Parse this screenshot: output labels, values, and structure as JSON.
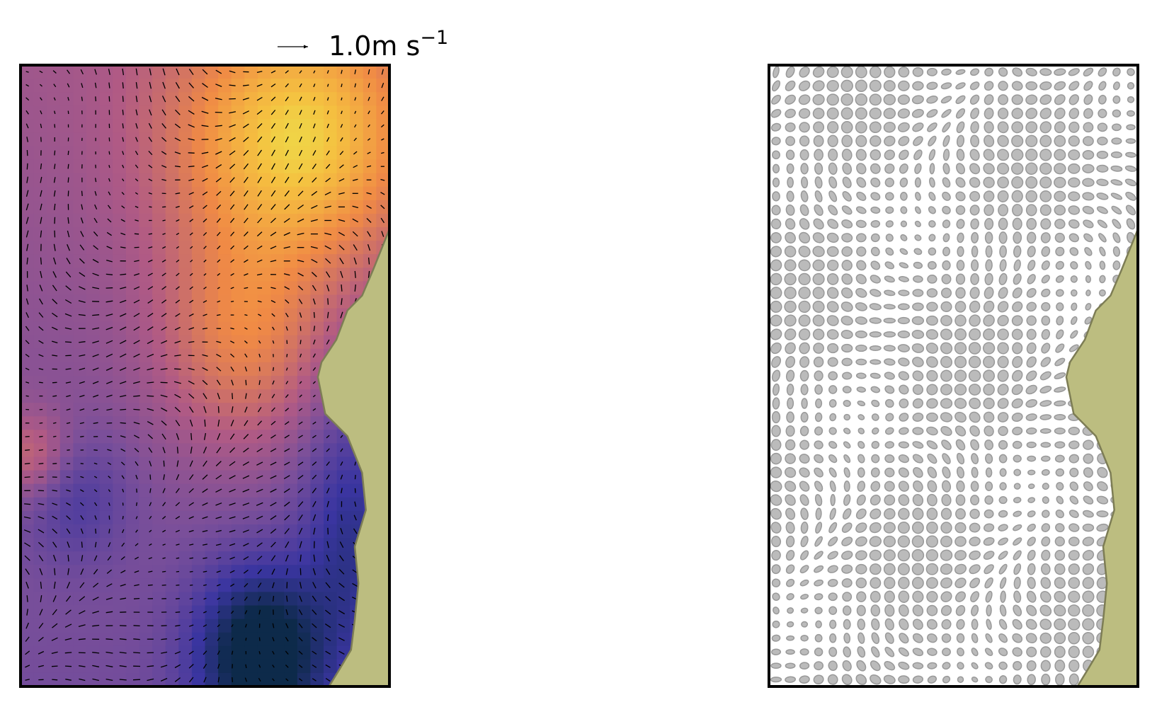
{
  "quiver_key": {
    "label": "1.0m s",
    "exponent": "−1"
  }
}
